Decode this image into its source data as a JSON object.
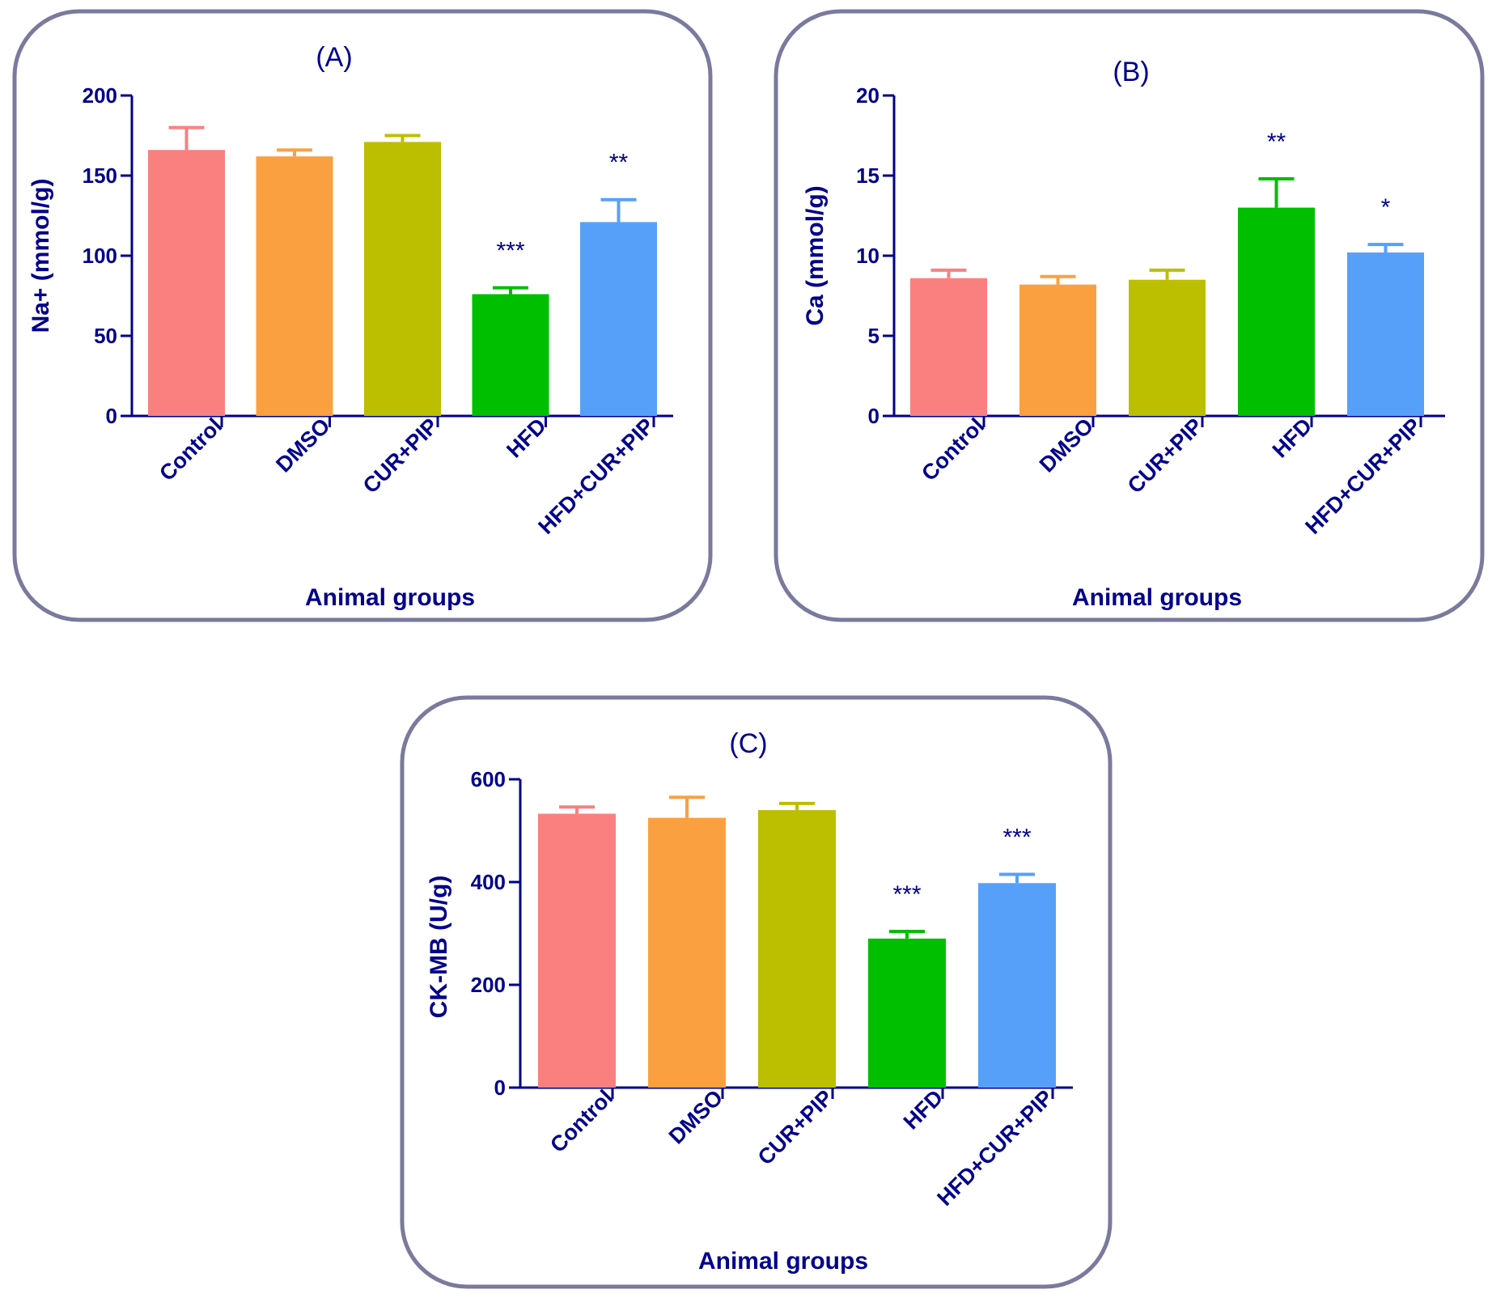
{
  "chart_data": [
    {
      "type": "bar",
      "panel_label": "(A)",
      "title": "(A)",
      "xlabel": "Animal groups",
      "ylabel": "Na+ (mmol/g)",
      "ylim": [
        0,
        200
      ],
      "yticks": [
        0,
        50,
        100,
        150,
        200
      ],
      "categories": [
        "Control",
        "DMSO",
        "CUR+PIP",
        "HFD",
        "HFD+CUR+PIP"
      ],
      "values": [
        166,
        162,
        171,
        76,
        121
      ],
      "errors": [
        14,
        4,
        4,
        4,
        14
      ],
      "significance": [
        "",
        "",
        "",
        "***",
        "**"
      ],
      "colors": [
        "#fa8080",
        "#fba040",
        "#bcbf00",
        "#00be00",
        "#56a0fa"
      ]
    },
    {
      "type": "bar",
      "panel_label": "(B)",
      "title": "(B)",
      "xlabel": "Animal groups",
      "ylabel": "Ca (mmol/g)",
      "ylim": [
        0,
        20
      ],
      "yticks": [
        0,
        5,
        10,
        15,
        20
      ],
      "categories": [
        "Control",
        "DMSO",
        "CUR+PIP",
        "HFD",
        "HFD+CUR+PIP"
      ],
      "values": [
        8.6,
        8.2,
        8.5,
        13.0,
        10.2
      ],
      "errors": [
        0.5,
        0.5,
        0.6,
        1.8,
        0.5
      ],
      "significance": [
        "",
        "",
        "",
        "**",
        "*"
      ],
      "colors": [
        "#fa8080",
        "#fba040",
        "#bcbf00",
        "#00be00",
        "#56a0fa"
      ]
    },
    {
      "type": "bar",
      "panel_label": "(C)",
      "title": "(C)",
      "xlabel": "Animal groups",
      "ylabel": "CK-MB (U/g)",
      "ylim": [
        0,
        600
      ],
      "yticks": [
        0,
        200,
        400,
        600
      ],
      "categories": [
        "Control",
        "DMSO",
        "CUR+PIP",
        "HFD",
        "HFD+CUR+PIP"
      ],
      "values": [
        533,
        525,
        540,
        290,
        398
      ],
      "errors": [
        13,
        40,
        13,
        14,
        17
      ],
      "significance": [
        "",
        "",
        "",
        "***",
        "***"
      ],
      "colors": [
        "#fa8080",
        "#fba040",
        "#bcbf00",
        "#00be00",
        "#56a0fa"
      ]
    }
  ]
}
